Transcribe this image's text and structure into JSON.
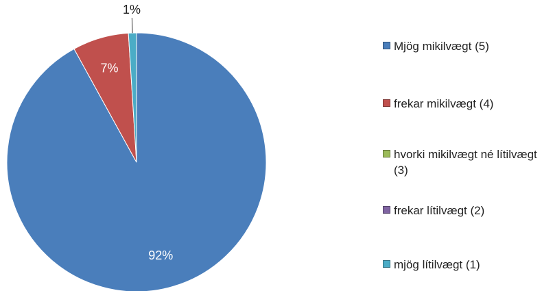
{
  "chart_data": {
    "type": "pie",
    "categories": [
      "Mjög mikilvægt (5)",
      "frekar mikilvægt (4)",
      "hvorki mikilvægt né lítilvægt (3)",
      "frekar lítilvægt (2)",
      "mjög lítilvægt (1)"
    ],
    "values": [
      92,
      7,
      0,
      0,
      1
    ],
    "value_labels": [
      "92%",
      "7%",
      null,
      null,
      "1%"
    ],
    "colors": [
      "#4a7ebb",
      "#c0504d",
      "#9bbb59",
      "#8064a2",
      "#4bacc6"
    ],
    "legend": "right"
  }
}
